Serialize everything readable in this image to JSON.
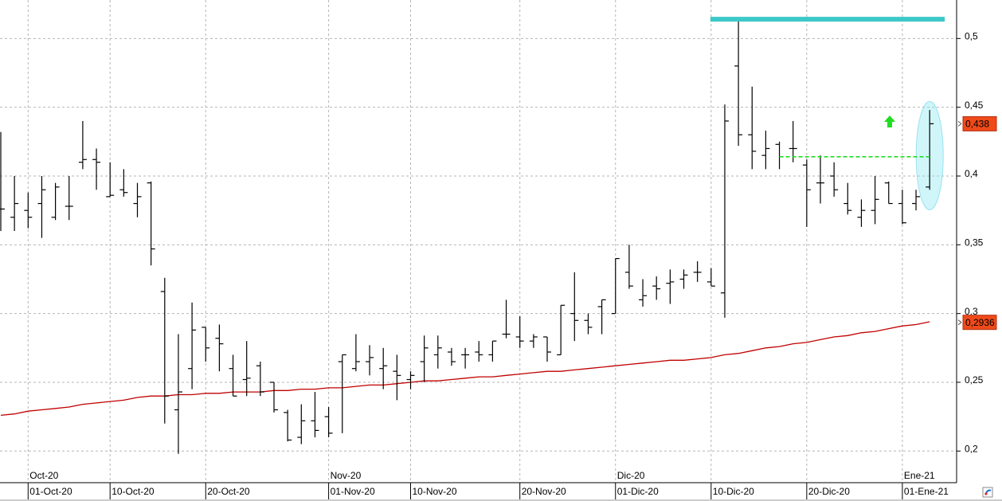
{
  "chart_data": {
    "type": "ohlc",
    "categories": [
      null,
      null,
      "01-Oct-20",
      null,
      null,
      null,
      null,
      null,
      "10-Oct-20",
      null,
      null,
      null,
      null,
      null,
      null,
      "20-Oct-20",
      null,
      null,
      null,
      null,
      null,
      null,
      null,
      null,
      "01-Nov-20",
      null,
      null,
      null,
      null,
      null,
      "10-Nov-20",
      null,
      null,
      null,
      null,
      null,
      null,
      null,
      "20-Nov-20",
      null,
      null,
      null,
      null,
      null,
      null,
      "01-Dic-20",
      null,
      null,
      null,
      null,
      null,
      null,
      "10-Dic-20",
      null,
      null,
      null,
      null,
      null,
      null,
      "20-Dic-20",
      null,
      null,
      null,
      null,
      null,
      null,
      "01-Ene-21",
      null,
      null
    ],
    "month_labels": [
      null,
      null,
      "Oct-20",
      null,
      null,
      null,
      null,
      null,
      null,
      null,
      null,
      null,
      null,
      null,
      null,
      null,
      null,
      null,
      null,
      null,
      null,
      null,
      null,
      null,
      "Nov-20",
      null,
      null,
      null,
      null,
      null,
      null,
      null,
      null,
      null,
      null,
      null,
      null,
      null,
      null,
      null,
      null,
      null,
      null,
      null,
      null,
      "Dic-20",
      null,
      null,
      null,
      null,
      null,
      null,
      null,
      null,
      null,
      null,
      null,
      null,
      null,
      null,
      null,
      null,
      null,
      null,
      null,
      null,
      "Ene-21",
      null,
      null
    ],
    "open": [
      0.376,
      0.37,
      0.375,
      0.38,
      0.37,
      0.378,
      0.41,
      0.412,
      0.385,
      0.39,
      0.38,
      0.395,
      0.316,
      0.23,
      0.26,
      0.29,
      0.282,
      0.26,
      0.252,
      0.262,
      0.25,
      0.228,
      0.21,
      0.222,
      0.225,
      0.265,
      0.26,
      0.265,
      0.26,
      0.258,
      0.252,
      0.265,
      0.27,
      0.272,
      0.27,
      0.272,
      0.27,
      0.285,
      0.283,
      0.28,
      0.283,
      0.27,
      0.3,
      0.295,
      0.305,
      0.3,
      0.33,
      0.31,
      0.32,
      0.322,
      0.325,
      0.33,
      0.323,
      0.315,
      0.48,
      0.43,
      0.415,
      0.423,
      0.42,
      0.408,
      0.395,
      0.4,
      0.38,
      0.37,
      0.375,
      0.395,
      0.38,
      0.38,
      0.392
    ],
    "high": [
      0.432,
      0.4,
      0.388,
      0.4,
      0.395,
      0.4,
      0.44,
      0.42,
      0.41,
      0.405,
      0.395,
      0.396,
      0.326,
      0.285,
      0.308,
      0.29,
      0.292,
      0.27,
      0.28,
      0.265,
      0.25,
      0.23,
      0.234,
      0.243,
      0.232,
      0.27,
      0.285,
      0.277,
      0.275,
      0.27,
      0.258,
      0.284,
      0.284,
      0.275,
      0.275,
      0.28,
      0.28,
      0.31,
      0.298,
      0.285,
      0.283,
      0.306,
      0.33,
      0.3,
      0.31,
      0.34,
      0.35,
      0.325,
      0.327,
      0.332,
      0.332,
      0.338,
      0.333,
      0.452,
      0.515,
      0.465,
      0.433,
      0.425,
      0.44,
      0.412,
      0.415,
      0.41,
      0.395,
      0.383,
      0.4,
      0.396,
      0.39,
      0.39,
      0.448
    ],
    "low": [
      0.36,
      0.36,
      0.362,
      0.355,
      0.368,
      0.368,
      0.405,
      0.39,
      0.385,
      0.385,
      0.37,
      0.335,
      0.22,
      0.198,
      0.245,
      0.265,
      0.258,
      0.24,
      0.24,
      0.24,
      0.228,
      0.207,
      0.205,
      0.21,
      0.21,
      0.213,
      0.258,
      0.255,
      0.245,
      0.237,
      0.245,
      0.25,
      0.26,
      0.262,
      0.26,
      0.265,
      0.265,
      0.282,
      0.275,
      0.275,
      0.265,
      0.27,
      0.28,
      0.285,
      0.285,
      0.3,
      0.318,
      0.305,
      0.31,
      0.307,
      0.318,
      0.323,
      0.32,
      0.297,
      0.422,
      0.405,
      0.405,
      0.405,
      0.41,
      0.363,
      0.38,
      0.385,
      0.372,
      0.363,
      0.365,
      0.38,
      0.365,
      0.375,
      0.39
    ],
    "close": [
      0.376,
      0.38,
      0.37,
      0.39,
      0.392,
      0.378,
      0.412,
      0.41,
      0.386,
      0.388,
      0.385,
      0.347,
      0.24,
      0.243,
      0.288,
      0.275,
      0.278,
      0.24,
      0.253,
      0.243,
      0.23,
      0.208,
      0.222,
      0.215,
      0.213,
      0.27,
      0.265,
      0.268,
      0.262,
      0.255,
      0.255,
      0.275,
      0.275,
      0.265,
      0.27,
      0.27,
      0.28,
      0.285,
      0.28,
      0.283,
      0.272,
      0.306,
      0.295,
      0.29,
      0.31,
      0.34,
      0.32,
      0.313,
      0.318,
      0.323,
      0.328,
      0.33,
      0.32,
      0.44,
      0.43,
      0.418,
      0.42,
      0.414,
      0.42,
      0.39,
      0.395,
      0.39,
      0.375,
      0.375,
      0.383,
      0.38,
      0.366,
      0.385,
      0.438
    ],
    "color": "#000000",
    "moving_average": {
      "color": "#c00000",
      "values": [
        0.226,
        0.227,
        0.229,
        0.23,
        0.231,
        0.232,
        0.234,
        0.235,
        0.236,
        0.237,
        0.239,
        0.24,
        0.24,
        0.241,
        0.241,
        0.242,
        0.242,
        0.243,
        0.243,
        0.243,
        0.244,
        0.244,
        0.245,
        0.245,
        0.246,
        0.246,
        0.247,
        0.248,
        0.248,
        0.249,
        0.25,
        0.251,
        0.251,
        0.252,
        0.253,
        0.254,
        0.254,
        0.255,
        0.256,
        0.257,
        0.258,
        0.258,
        0.259,
        0.26,
        0.261,
        0.262,
        0.263,
        0.264,
        0.265,
        0.266,
        0.266,
        0.267,
        0.268,
        0.27,
        0.271,
        0.273,
        0.275,
        0.276,
        0.278,
        0.279,
        0.281,
        0.283,
        0.284,
        0.286,
        0.287,
        0.289,
        0.291,
        0.292,
        0.294
      ]
    },
    "levels": [
      {
        "value": 0.514,
        "color": "#3cc8c8"
      },
      {
        "value": 0.414,
        "color": "#22dd22"
      }
    ],
    "price_labels": [
      {
        "value": 0.438,
        "label": "0,438",
        "color": "#f04a1a"
      },
      {
        "value": 0.2936,
        "label": "0,2936",
        "color": "#f04a1a"
      }
    ],
    "ylim": [
      0.177,
      0.528
    ],
    "yticks": [
      {
        "value": 0.2,
        "label": "0,2"
      },
      {
        "value": 0.25,
        "label": "0,25"
      },
      {
        "value": 0.3,
        "label": "0,3"
      },
      {
        "value": 0.35,
        "label": "0,35"
      },
      {
        "value": 0.4,
        "label": "0,4"
      },
      {
        "value": 0.45,
        "label": "0,45"
      },
      {
        "value": 0.5,
        "label": "0,5"
      }
    ],
    "grid": true
  }
}
